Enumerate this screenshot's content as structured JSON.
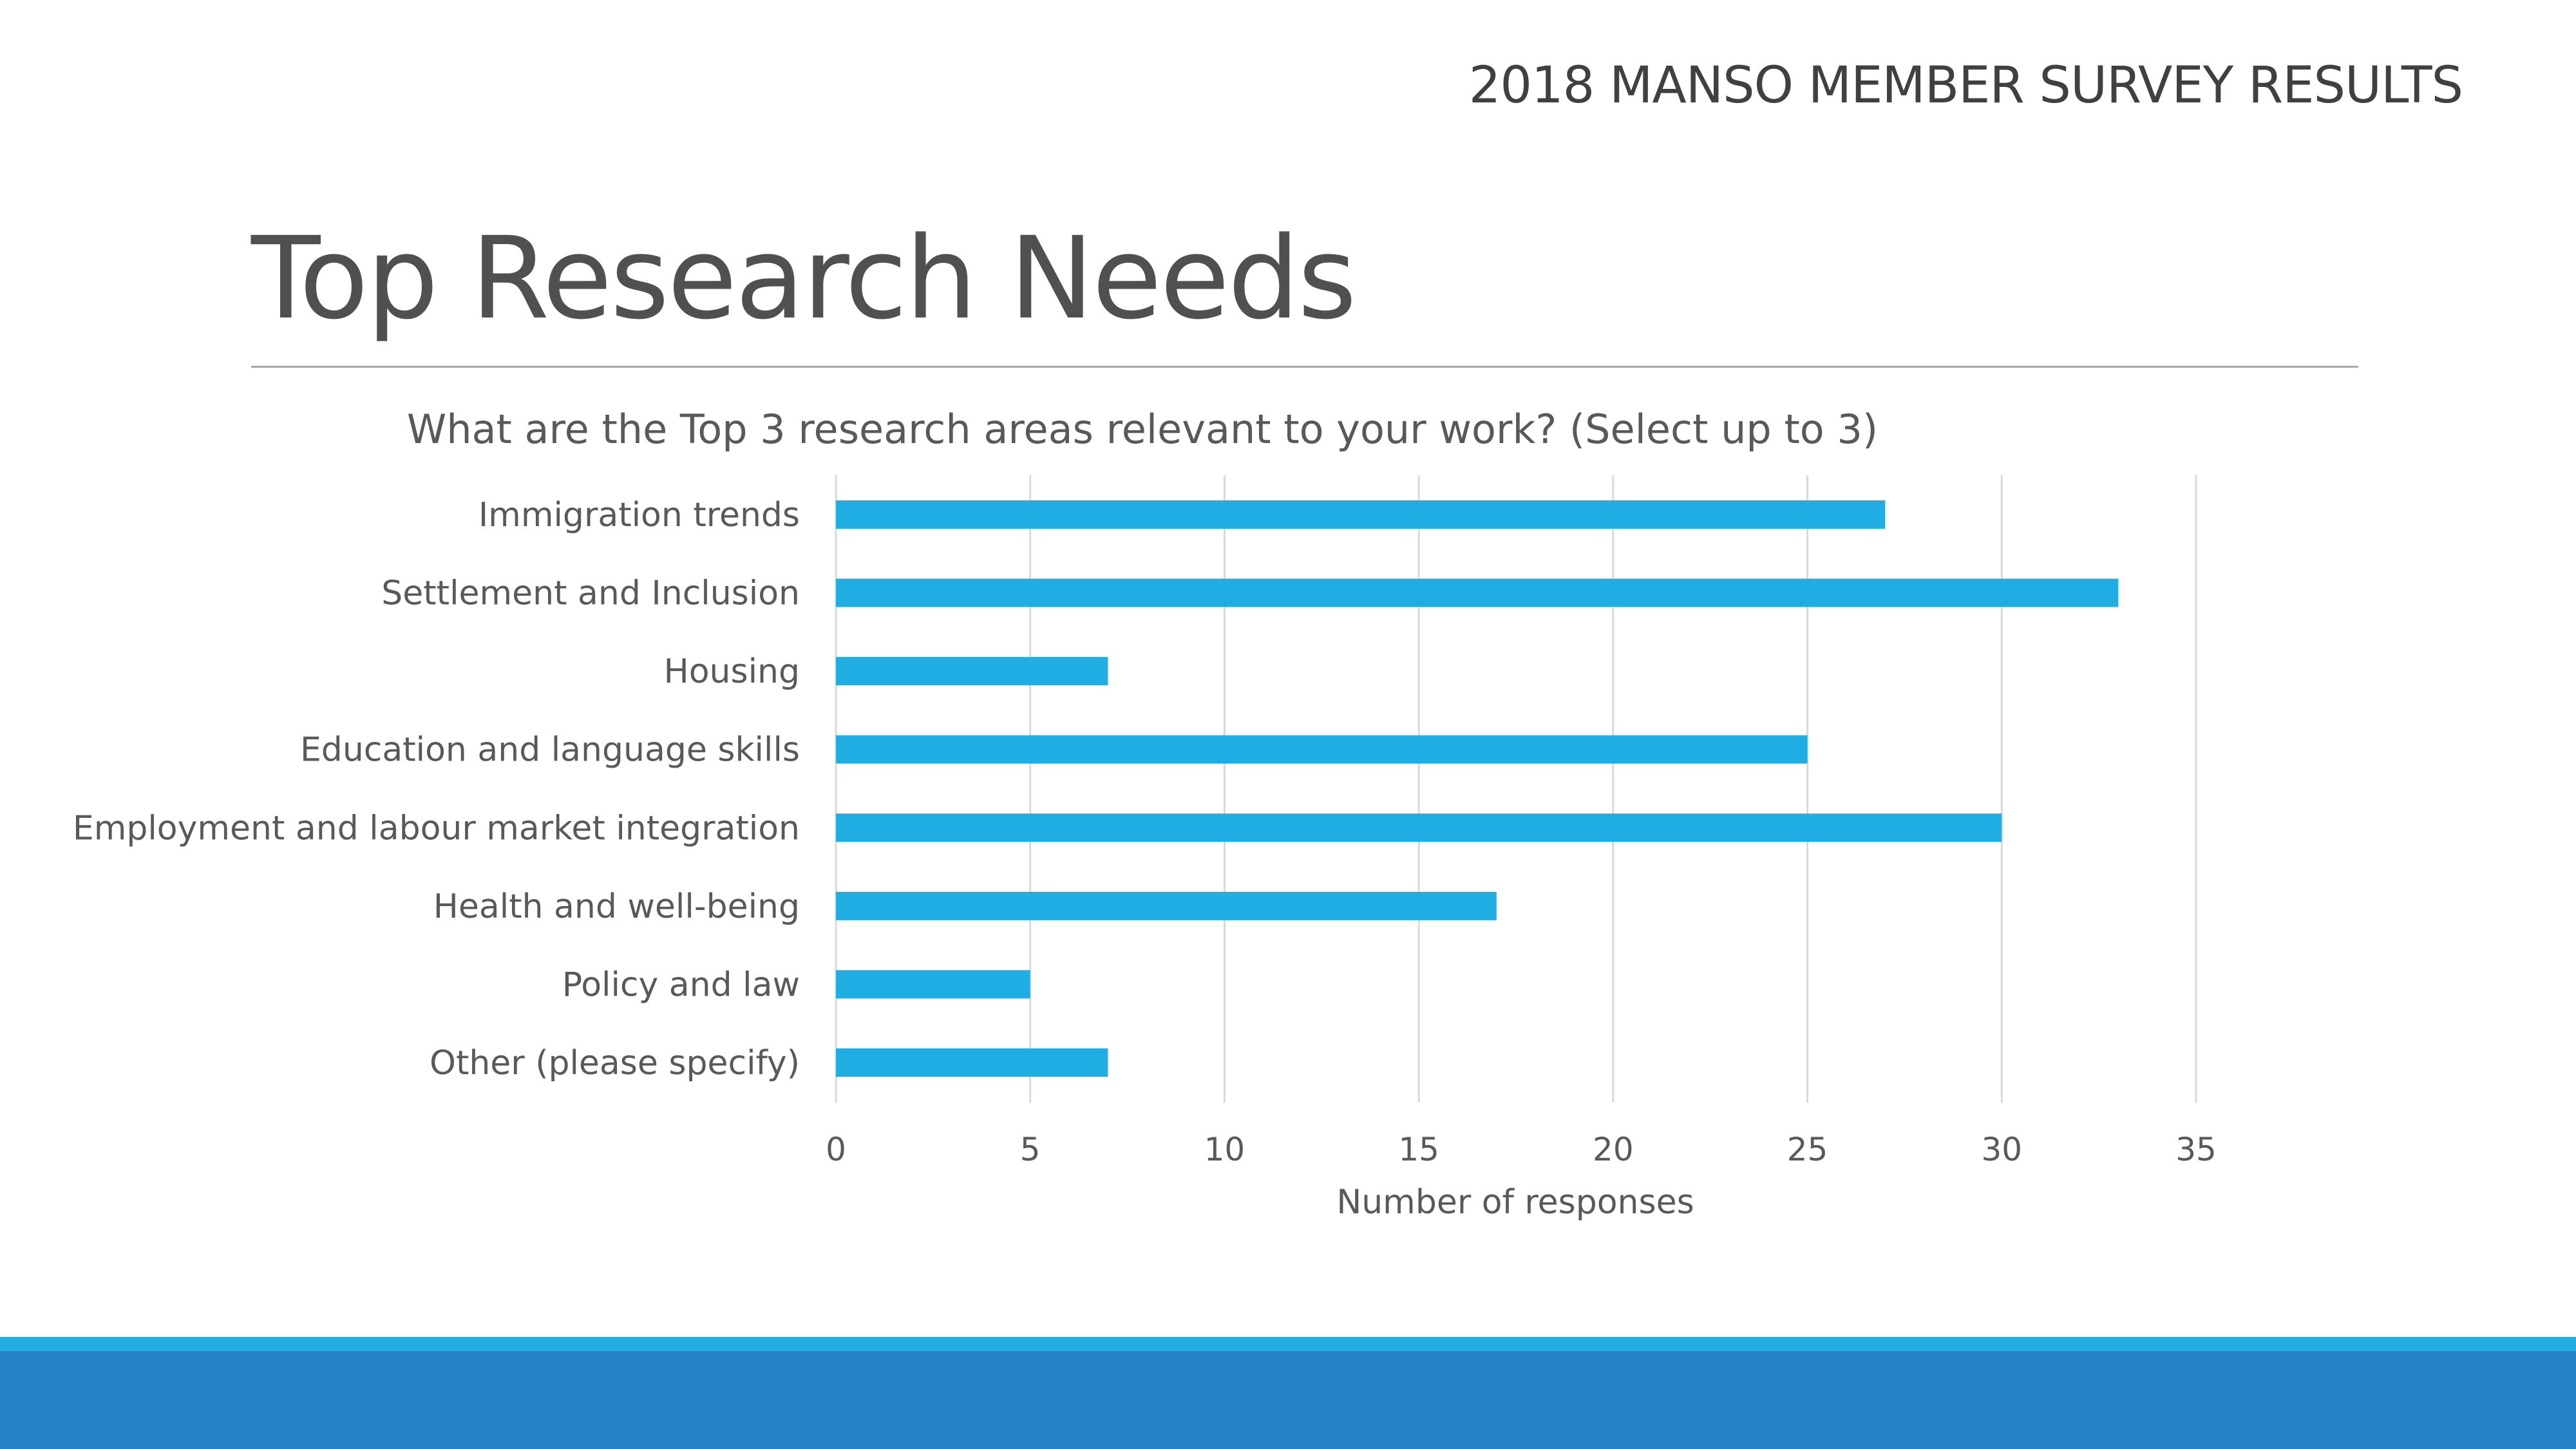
{
  "slide": {
    "header": "2018 MANSO MEMBER SURVEY RESULTS",
    "title": "Top Research Needs"
  },
  "colors": {
    "bar": "#1FADE4",
    "footer_light": "#1FADE4",
    "footer_dark": "#2683C6"
  },
  "chart_data": {
    "type": "bar",
    "orientation": "horizontal",
    "title": "What are the Top 3 research areas relevant to your work? (Select up to 3)",
    "xlabel": "Number of responses",
    "ylabel": "",
    "categories": [
      "Immigration trends",
      "Settlement and Inclusion",
      "Housing",
      "Education and language skills",
      "Employment and labour market integration",
      "Health and well-being",
      "Policy and law",
      "Other (please specify)"
    ],
    "values": [
      27,
      33,
      7,
      25,
      30,
      17,
      5,
      7
    ],
    "xlim": [
      0,
      35
    ],
    "xticks": [
      "0",
      "5",
      "10",
      "15",
      "20",
      "25",
      "30",
      "35"
    ],
    "grid": true,
    "legend": "none"
  }
}
